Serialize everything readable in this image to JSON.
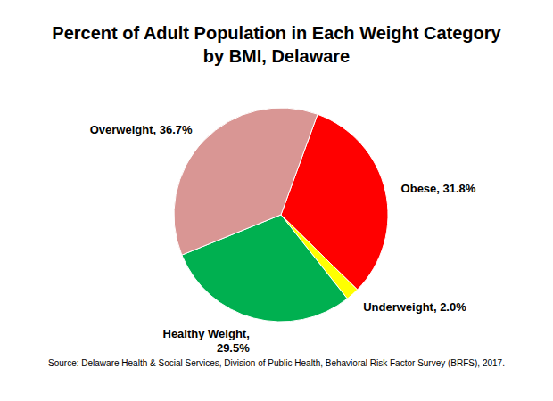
{
  "chart_data": {
    "type": "pie",
    "title": "Percent of Adult Population in Each Weight Category\nby BMI, Delaware",
    "categories": [
      "Obese",
      "Underweight",
      "Healthy Weight",
      "Overweight"
    ],
    "values": [
      31.8,
      2.0,
      29.5,
      36.7
    ],
    "value_labels": [
      "Obese, 31.8%",
      "Underweight, 2.0%",
      "Healthy Weight,\n29.5%",
      "Overweight, 36.7%"
    ],
    "colors": [
      "#ff0000",
      "#ffff00",
      "#00b050",
      "#d99694"
    ],
    "data_labels": true,
    "source": "Source:  Delaware Health & Social Services, Division of Public Health, Behavioral Risk Factor Survey (BRFS), 2017."
  }
}
